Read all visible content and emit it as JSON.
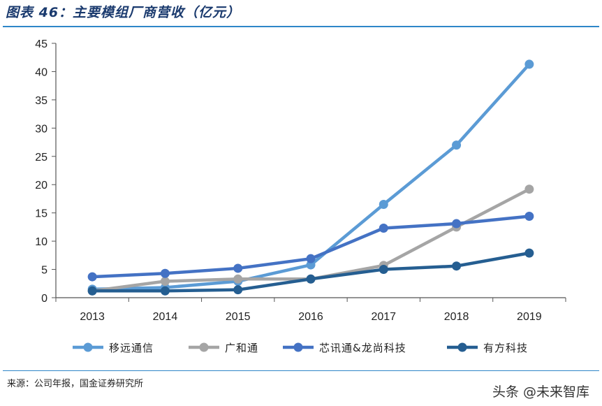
{
  "header": {
    "title": "图表 46：主要模组厂商营收（亿元）"
  },
  "footer": {
    "source": "来源：公司年报，国金证券研究所",
    "watermark": "头条 @未来智库"
  },
  "chart_data": {
    "type": "line",
    "x": [
      "2013",
      "2014",
      "2015",
      "2016",
      "2017",
      "2018",
      "2019"
    ],
    "ylim": [
      0,
      45
    ],
    "yticks": [
      0,
      5,
      10,
      15,
      20,
      25,
      30,
      35,
      40,
      45
    ],
    "grid": false,
    "legend": "bottom",
    "series": [
      {
        "name": "移远通信",
        "color": "#5b9bd5",
        "values": [
          1.5,
          1.8,
          2.9,
          5.8,
          16.5,
          27.0,
          41.3
        ]
      },
      {
        "name": "广和通",
        "color": "#a5a5a5",
        "values": [
          1.2,
          2.9,
          3.3,
          3.3,
          5.7,
          12.5,
          19.2
        ]
      },
      {
        "name": "芯讯通&龙尚科技",
        "color": "#4472c4",
        "values": [
          3.7,
          4.3,
          5.2,
          6.9,
          12.3,
          13.1,
          14.4
        ]
      },
      {
        "name": "有方科技",
        "color": "#255e91",
        "values": [
          1.2,
          1.2,
          1.4,
          3.3,
          5.0,
          5.6,
          7.9
        ]
      }
    ]
  }
}
